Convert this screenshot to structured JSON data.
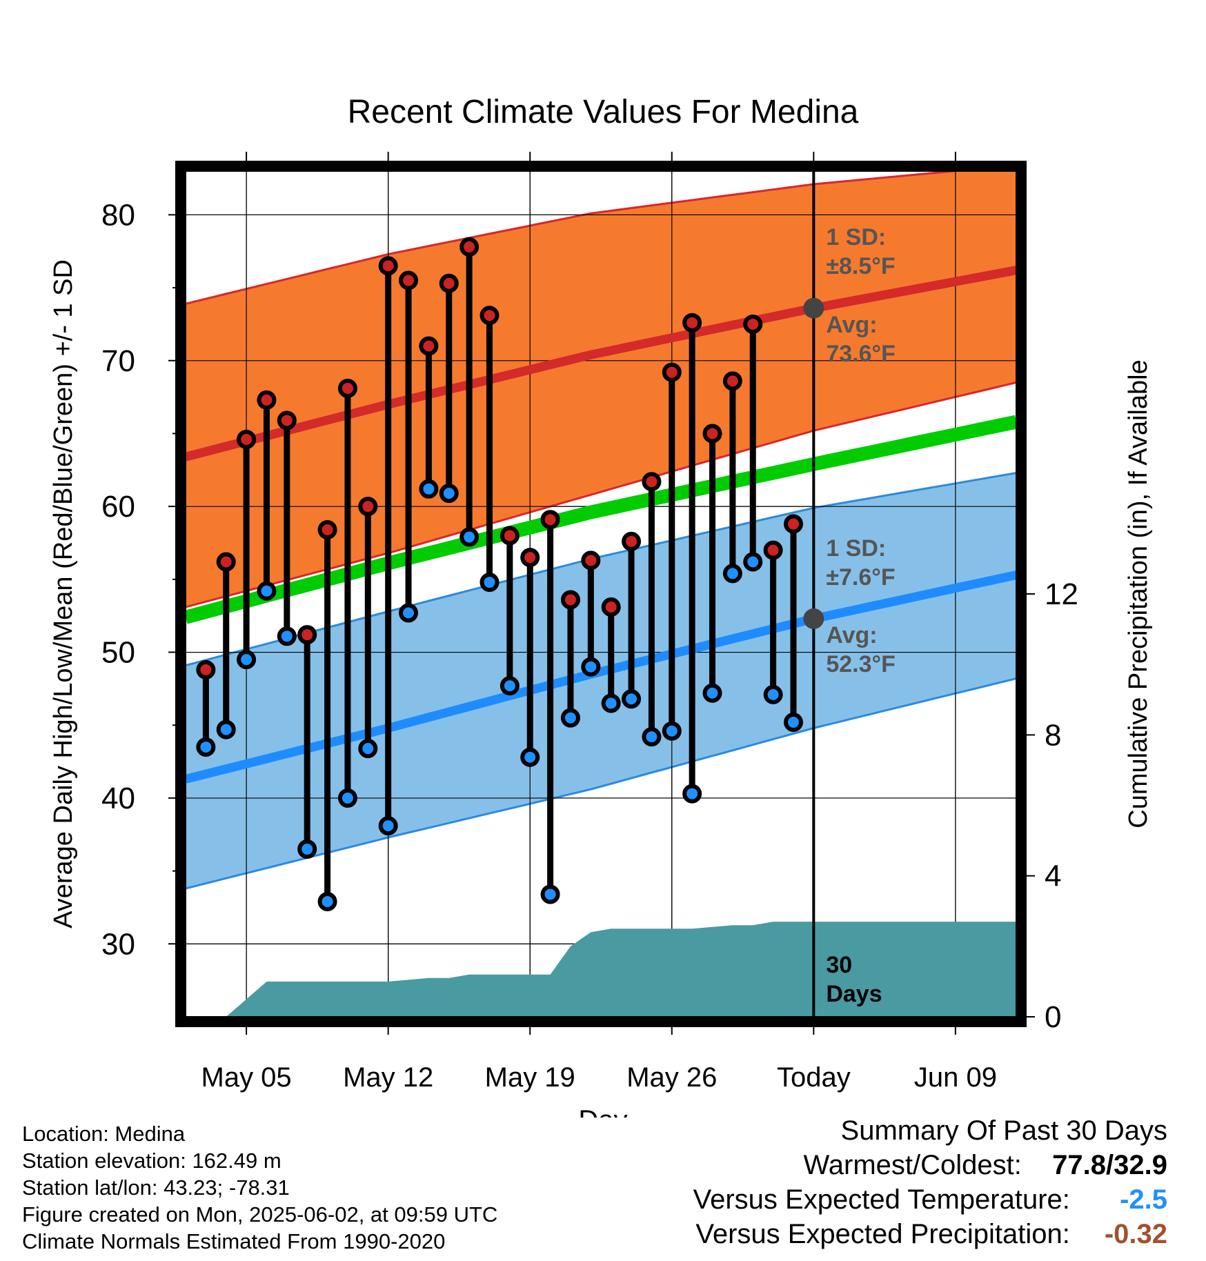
{
  "chart_data": {
    "type": "line",
    "title": "Recent Climate Values For Medina",
    "xlabel": "Day",
    "ylabel": "Average Daily High/Low/Mean (Red/Blue/Green) +/- 1 SD",
    "y2label": "Cumulative Precipitation (in), If Available",
    "ylim": [
      25,
      83
    ],
    "y2lim": [
      0,
      24
    ],
    "x_range_days": [
      "2025-05-02",
      "2025-06-12"
    ],
    "x_ticks": [
      {
        "date": "2025-05-05",
        "label": "May 05"
      },
      {
        "date": "2025-05-12",
        "label": "May 12"
      },
      {
        "date": "2025-05-19",
        "label": "May 19"
      },
      {
        "date": "2025-05-26",
        "label": "May 26"
      },
      {
        "date": "2025-06-02",
        "label": "Today"
      },
      {
        "date": "2025-06-09",
        "label": "Jun 09"
      }
    ],
    "y_ticks": [
      30,
      40,
      50,
      60,
      70,
      80
    ],
    "y_minor_ticks": [
      35,
      45,
      55,
      65,
      75
    ],
    "y2_ticks": [
      0,
      4,
      8,
      12
    ],
    "grid": true,
    "today": "2025-06-02",
    "normals": {
      "dates": [
        "2025-05-02",
        "2025-05-12",
        "2025-05-22",
        "2025-06-02",
        "2025-06-12"
      ],
      "high_avg": [
        63.4,
        67.0,
        70.4,
        73.6,
        76.2
      ],
      "high_upper": [
        73.9,
        77.3,
        80.1,
        82.1,
        83.4
      ],
      "high_lower": [
        53.1,
        56.8,
        60.8,
        65.2,
        68.5
      ],
      "mean_avg": [
        52.4,
        56.1,
        59.6,
        62.9,
        65.8
      ],
      "low_avg": [
        41.3,
        44.8,
        48.5,
        52.3,
        55.3
      ],
      "low_upper": [
        49.1,
        52.8,
        56.4,
        59.9,
        62.3
      ],
      "low_lower": [
        33.8,
        37.3,
        40.6,
        44.8,
        48.2
      ]
    },
    "series": [
      {
        "name": "High",
        "color": "#cc2222",
        "dates": [
          "2025-05-03",
          "2025-05-04",
          "2025-05-05",
          "2025-05-06",
          "2025-05-07",
          "2025-05-08",
          "2025-05-09",
          "2025-05-10",
          "2025-05-11",
          "2025-05-12",
          "2025-05-13",
          "2025-05-14",
          "2025-05-15",
          "2025-05-16",
          "2025-05-17",
          "2025-05-18",
          "2025-05-19",
          "2025-05-20",
          "2025-05-21",
          "2025-05-22",
          "2025-05-23",
          "2025-05-24",
          "2025-05-25",
          "2025-05-26",
          "2025-05-27",
          "2025-05-28",
          "2025-05-29",
          "2025-05-30",
          "2025-05-31",
          "2025-06-01"
        ],
        "values": [
          48.8,
          56.2,
          64.6,
          67.3,
          65.9,
          51.2,
          58.4,
          68.1,
          60.0,
          76.5,
          75.5,
          71.0,
          75.3,
          77.8,
          73.1,
          58.0,
          56.5,
          59.1,
          53.6,
          56.3,
          53.1,
          57.6,
          61.7,
          69.2,
          72.6,
          65.0,
          68.6,
          72.5,
          57.0,
          58.8
        ]
      },
      {
        "name": "Low",
        "color": "#1e90ff",
        "dates": [
          "2025-05-03",
          "2025-05-04",
          "2025-05-05",
          "2025-05-06",
          "2025-05-07",
          "2025-05-08",
          "2025-05-09",
          "2025-05-10",
          "2025-05-11",
          "2025-05-12",
          "2025-05-13",
          "2025-05-14",
          "2025-05-15",
          "2025-05-16",
          "2025-05-17",
          "2025-05-18",
          "2025-05-19",
          "2025-05-20",
          "2025-05-21",
          "2025-05-22",
          "2025-05-23",
          "2025-05-24",
          "2025-05-25",
          "2025-05-26",
          "2025-05-27",
          "2025-05-28",
          "2025-05-29",
          "2025-05-30",
          "2025-05-31",
          "2025-06-01"
        ],
        "values": [
          43.5,
          44.7,
          49.5,
          54.2,
          51.1,
          36.5,
          32.9,
          40.0,
          43.4,
          38.1,
          52.7,
          61.2,
          60.9,
          57.9,
          54.8,
          47.7,
          42.8,
          33.4,
          45.5,
          49.0,
          46.5,
          46.8,
          44.2,
          44.6,
          40.3,
          47.2,
          55.4,
          56.2,
          47.1,
          45.2
        ]
      }
    ],
    "precipitation": {
      "name": "Cumulative Precipitation",
      "color": "#4a9aa2",
      "dates": [
        "2025-05-02",
        "2025-05-03",
        "2025-05-04",
        "2025-05-05",
        "2025-05-06",
        "2025-05-07",
        "2025-05-08",
        "2025-05-09",
        "2025-05-10",
        "2025-05-11",
        "2025-05-12",
        "2025-05-13",
        "2025-05-14",
        "2025-05-15",
        "2025-05-16",
        "2025-05-17",
        "2025-05-18",
        "2025-05-19",
        "2025-05-20",
        "2025-05-21",
        "2025-05-22",
        "2025-05-23",
        "2025-05-24",
        "2025-05-25",
        "2025-05-26",
        "2025-05-27",
        "2025-05-28",
        "2025-05-29",
        "2025-05-30",
        "2025-05-31",
        "2025-06-01",
        "2025-06-02",
        "2025-06-12"
      ],
      "values": [
        0,
        0,
        0,
        0.5,
        1.0,
        1.0,
        1.0,
        1.0,
        1.0,
        1.0,
        1.0,
        1.05,
        1.1,
        1.1,
        1.2,
        1.2,
        1.2,
        1.2,
        1.2,
        2.0,
        2.4,
        2.5,
        2.5,
        2.5,
        2.5,
        2.5,
        2.55,
        2.6,
        2.6,
        2.7,
        2.7,
        2.7,
        2.7
      ]
    },
    "annotations": {
      "high_sd_line1": "1 SD:",
      "high_sd_line2": "±8.5°F",
      "high_avg_line1": "Avg:",
      "high_avg_line2": "73.6°F",
      "low_sd_line1": "1 SD:",
      "low_sd_line2": "±7.6°F",
      "low_avg_line1": "Avg:",
      "low_avg_line2": "52.3°F",
      "days_line1": "30",
      "days_line2": "Days"
    },
    "colors": {
      "high_band": "#f57a2e",
      "high_band_edge": "#d9262c",
      "high_avg": "#d42a2a",
      "mean_avg": "#00cc00",
      "low_band": "#86c0e8",
      "low_band_edge": "#2a8ae0",
      "low_avg": "#1e8cff",
      "annotation": "#555555",
      "today_marker": "#444444"
    }
  },
  "footer": {
    "location": "Location: Medina",
    "elevation": "Station elevation: 162.49 m",
    "latlon": "Station lat/lon: 43.23; -78.31",
    "created": "Figure created on Mon, 2025-06-02, at 09:59 UTC",
    "normals": "Climate Normals Estimated From 1990-2020"
  },
  "summary": {
    "title": "Summary Of Past 30 Days",
    "warm_cold_label": "Warmest/Coldest:",
    "warm_cold_value": "77.8/32.9",
    "temp_label": "Versus Expected Temperature:",
    "temp_value": "-2.5",
    "temp_color": "#1e90ff",
    "precip_label": "Versus Expected Precipitation:",
    "precip_value": "-0.32",
    "precip_color": "#a0522d"
  }
}
